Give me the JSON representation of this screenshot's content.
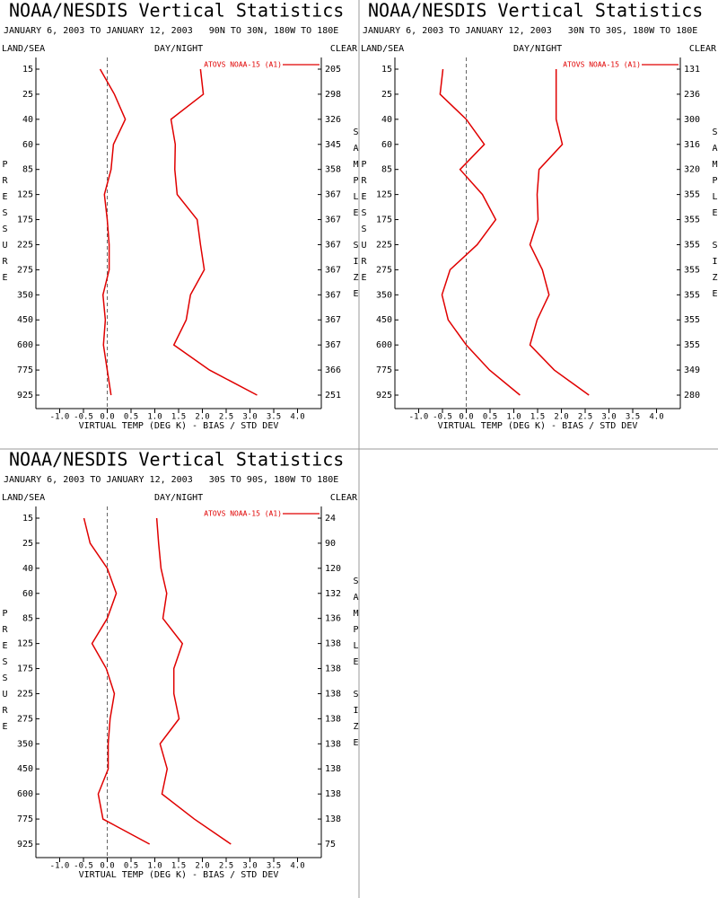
{
  "chart_data": [
    {
      "type": "line",
      "title": "NOAA/NESDIS Vertical Statistics",
      "subtitle": "JANUARY 6, 2003 TO JANUARY 12, 2003   90N TO 30N, 180W TO 180E",
      "land_sea": "LAND/SEA",
      "day_night": "DAY/NIGHT",
      "clear": "CLEAR",
      "y_label": "PRESSURE",
      "y2_label": "SAMPLE SIZE",
      "x_label": "VIRTUAL TEMP (DEG K) - BIAS / STD DEV",
      "categories": [
        "15",
        "25",
        "40",
        "60",
        "85",
        "125",
        "175",
        "225",
        "275",
        "350",
        "450",
        "600",
        "775",
        "925"
      ],
      "sample_size": [
        205,
        298,
        326,
        345,
        358,
        367,
        367,
        367,
        367,
        367,
        367,
        367,
        366,
        251
      ],
      "xlim": [
        -1.5,
        4.5
      ],
      "xticks": [
        {
          "value": -1,
          "label": "-1.0"
        },
        {
          "value": -0.5,
          "label": "-0.5"
        },
        {
          "value": 0,
          "label": "0.0"
        },
        0.5,
        {
          "value": 1,
          "label": "1.0"
        },
        1.5,
        {
          "value": 2,
          "label": "2.0"
        },
        2.5,
        {
          "value": 3,
          "label": "3.0"
        },
        3.5,
        {
          "value": 4,
          "label": "4.0"
        }
      ],
      "series": [
        {
          "name": "ATOVS NOAA-15 (A1)",
          "color": "#e00000",
          "bias": [
            -0.15,
            0.15,
            0.38,
            0.13,
            0.08,
            -0.06,
            0,
            0.04,
            0.04,
            -0.09,
            -0.04,
            -0.08,
            0,
            0.08
          ],
          "std_dev": [
            1.96,
            2.02,
            1.34,
            1.43,
            1.42,
            1.47,
            1.89,
            1.96,
            2.04,
            1.75,
            1.66,
            1.4,
            2.15,
            3.15
          ]
        }
      ]
    },
    {
      "type": "line",
      "title": "NOAA/NESDIS Vertical Statistics",
      "subtitle": "JANUARY 6, 2003 TO JANUARY 12, 2003   30N TO 30S, 180W TO 180E",
      "land_sea": "LAND/SEA",
      "day_night": "DAY/NIGHT",
      "clear": "CLEAR",
      "y_label": "PRESSURE",
      "y2_label": "SAMPLE SIZE",
      "x_label": "VIRTUAL TEMP (DEG K) - BIAS / STD DEV",
      "categories": [
        "15",
        "25",
        "40",
        "60",
        "85",
        "125",
        "175",
        "225",
        "275",
        "350",
        "450",
        "600",
        "775",
        "925"
      ],
      "sample_size": [
        131,
        236,
        300,
        316,
        320,
        355,
        355,
        355,
        355,
        355,
        355,
        355,
        349,
        280
      ],
      "xlim": [
        -1.5,
        4.5
      ],
      "xticks": [
        {
          "value": -1,
          "label": "-1.0"
        },
        {
          "value": -0.5,
          "label": "-0.5"
        },
        {
          "value": 0,
          "label": "0.0"
        },
        0.5,
        {
          "value": 1,
          "label": "1.0"
        },
        1.5,
        {
          "value": 2,
          "label": "2.0"
        },
        2.5,
        {
          "value": 3,
          "label": "3.0"
        },
        3.5,
        {
          "value": 4,
          "label": "4.0"
        }
      ],
      "series": [
        {
          "name": "ATOVS NOAA-15 (A1)",
          "color": "#e00000",
          "bias": [
            -0.49,
            -0.55,
            0,
            0.38,
            -0.13,
            0.34,
            0.62,
            0.23,
            -0.34,
            -0.51,
            -0.38,
            0,
            0.49,
            1.13
          ],
          "std_dev": [
            1.89,
            1.89,
            1.89,
            2.02,
            1.53,
            1.49,
            1.51,
            1.34,
            1.6,
            1.74,
            1.49,
            1.34,
            1.85,
            2.58
          ]
        }
      ]
    },
    {
      "type": "line",
      "title": "NOAA/NESDIS Vertical Statistics",
      "subtitle": "JANUARY 6, 2003 TO JANUARY 12, 2003   30S TO 90S, 180W TO 180E",
      "land_sea": "LAND/SEA",
      "day_night": "DAY/NIGHT",
      "clear": "CLEAR",
      "y_label": "PRESSURE",
      "y2_label": "SAMPLE SIZE",
      "x_label": "VIRTUAL TEMP (DEG K) - BIAS / STD DEV",
      "categories": [
        "15",
        "25",
        "40",
        "60",
        "85",
        "125",
        "175",
        "225",
        "275",
        "350",
        "450",
        "600",
        "775",
        "925"
      ],
      "sample_size": [
        24,
        90,
        120,
        132,
        136,
        138,
        138,
        138,
        138,
        138,
        138,
        138,
        138,
        75
      ],
      "xlim": [
        -1.5,
        4.5
      ],
      "xticks": [
        {
          "value": -1,
          "label": "-1.0"
        },
        {
          "value": -0.5,
          "label": "-0.5"
        },
        {
          "value": 0,
          "label": "0.0"
        },
        0.5,
        {
          "value": 1,
          "label": "1.0"
        },
        1.5,
        {
          "value": 2,
          "label": "2.0"
        },
        2.5,
        {
          "value": 3,
          "label": "3.0"
        },
        3.5,
        {
          "value": 4,
          "label": "4.0"
        }
      ],
      "series": [
        {
          "name": "ATOVS NOAA-15 (A1)",
          "color": "#e00000",
          "bias": [
            -0.49,
            -0.36,
            0,
            0.19,
            0,
            -0.32,
            -0.02,
            0.15,
            0.06,
            0.02,
            0.02,
            -0.19,
            -0.09,
            0.89
          ],
          "std_dev": [
            1.04,
            1.08,
            1.13,
            1.25,
            1.17,
            1.58,
            1.4,
            1.4,
            1.51,
            1.11,
            1.26,
            1.15,
            1.83,
            2.6
          ]
        }
      ]
    }
  ]
}
